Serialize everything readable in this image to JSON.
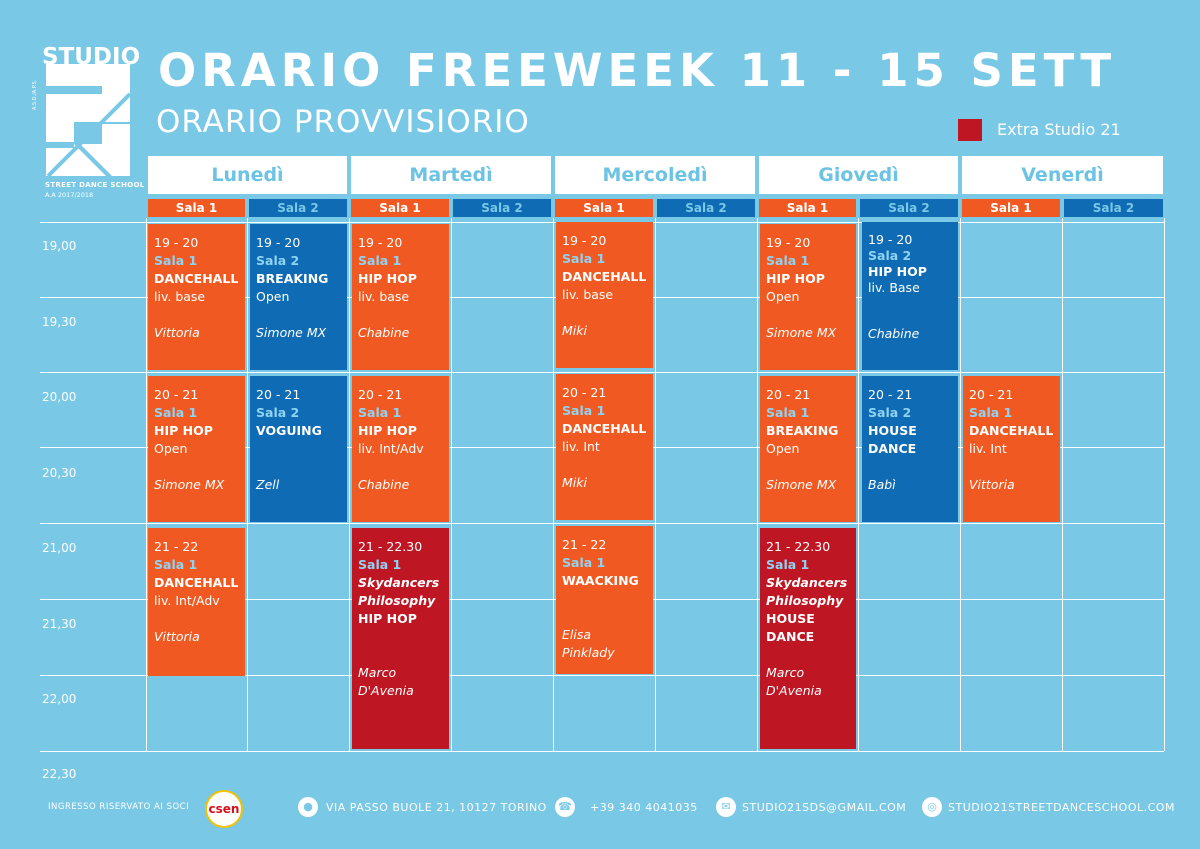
{
  "logo": {
    "studio": "STUDIO",
    "side": "A.S.D./A.P.S.",
    "sub": "STREET DANCE SCHOOL",
    "year": "A.A 2017/2018"
  },
  "title": "ORARIO FREEWEEK 11 - 15 SETT",
  "subtitle": "ORARIO PROVVISIORIO",
  "legend": {
    "label": "Extra Studio 21",
    "color": "#be1623"
  },
  "days": [
    "Lunedì",
    "Martedì",
    "Mercoledì",
    "Giovedì",
    "Venerdì"
  ],
  "sala1": "Sala 1",
  "sala2": "Sala 2",
  "times": [
    "19,00",
    "19,30",
    "20,00",
    "20,30",
    "21,00",
    "21,30",
    "22,00",
    "22,30"
  ],
  "classes": [
    {
      "time": "19 - 20",
      "sala": "Sala 1",
      "style": "DANCEHALL",
      "level": "liv. base",
      "teacher": "Vittoria"
    },
    {
      "time": "19 - 20",
      "sala": "Sala 2",
      "style": "BREAKING",
      "level": "Open",
      "teacher": "Simone MX"
    },
    {
      "time": "19 - 20",
      "sala": "Sala 1",
      "style": "HIP HOP",
      "level": "liv. base",
      "teacher": "Chabine"
    },
    {
      "time": "19 - 20",
      "sala": "Sala 1",
      "style": "DANCEHALL",
      "level": "liv. base",
      "teacher": "Miki"
    },
    {
      "time": "19 - 20",
      "sala": "Sala 1",
      "style": "HIP HOP",
      "level": "Open",
      "teacher": "Simone MX"
    },
    {
      "time": "19 - 20",
      "sala": "Sala 2",
      "style": "HIP HOP",
      "level": "liv. Base",
      "teacher": "Chabine"
    },
    {
      "time": "20 - 21",
      "sala": "Sala 1",
      "style": "HIP HOP",
      "level": "Open",
      "teacher": "Simone MX"
    },
    {
      "time": "20 - 21",
      "sala": "Sala 2",
      "style": "VOGUING",
      "level": "",
      "teacher": "Zell"
    },
    {
      "time": "20 - 21",
      "sala": "Sala 1",
      "style": "HIP HOP",
      "level": "liv. Int/Adv",
      "teacher": "Chabine"
    },
    {
      "time": "20 - 21",
      "sala": "Sala 1",
      "style": "DANCEHALL",
      "level": "liv. Int",
      "teacher": "Miki"
    },
    {
      "time": "20 - 21",
      "sala": "Sala 1",
      "style": "BREAKING",
      "level": "Open",
      "teacher": "Simone MX"
    },
    {
      "time": "20 - 21",
      "sala": "Sala 2",
      "style": "HOUSE",
      "style2": "DANCE",
      "teacher": "Babì"
    },
    {
      "time": "20 - 21",
      "sala": "Sala 1",
      "style": "DANCEHALL",
      "level": "liv. Int",
      "teacher": "Vittoria"
    },
    {
      "time": "21 - 22",
      "sala": "Sala 1",
      "style": "DANCEHALL",
      "level": "liv. Int/Adv",
      "teacher": "Vittoria"
    },
    {
      "time": "21 - 22.30",
      "sala": "Sala 1",
      "extra1": "Skydancers",
      "extra2": "Philosophy",
      "style": "HIP HOP",
      "teacher": "Marco",
      "teacher2": "D'Avenia"
    },
    {
      "time": "21 - 22",
      "sala": "Sala 1",
      "style": "WAACKING",
      "teacher": "Elisa Pinklady"
    },
    {
      "time": "21 - 22.30",
      "sala": "Sala 1",
      "extra1": "Skydancers",
      "extra2": "Philosophy",
      "style": "HOUSE",
      "style2": "DANCE",
      "teacher": "Marco",
      "teacher2": "D'Avenia"
    }
  ],
  "footer": {
    "members": "INGRESSO RISERVATO AI SOCI",
    "badge": "csen",
    "address": "VIA PASSO BUOLE 21, 10127 TORINO",
    "phone": "+39 340 4041035",
    "email": "STUDIO21SDS@GMAIL.COM",
    "web": "STUDIO21STREETDANCESCHOOL.COM"
  }
}
